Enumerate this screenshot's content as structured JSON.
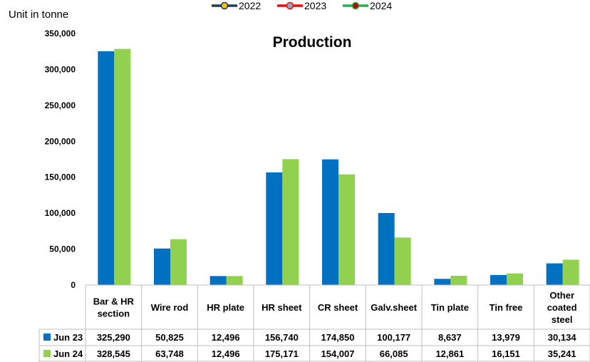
{
  "unit_label": "Unit in tonne",
  "top_legend": [
    {
      "label": "2022",
      "line_color": "#1F3864",
      "dot_color": "#F5C518"
    },
    {
      "label": "2023",
      "line_color": "#FF0000",
      "dot_color": "#8FA8C8"
    },
    {
      "label": "2024",
      "line_color": "#22B14C",
      "dot_color": "#C00000"
    }
  ],
  "colors": {
    "jun23": "#0070C0",
    "jun24": "#92D050",
    "grid": "#d9d9d9",
    "table_border": "#bfbfbf"
  },
  "chart_data": {
    "type": "bar",
    "title": "Production",
    "categories": [
      [
        "Bar & HR",
        "section"
      ],
      [
        "Wire rod"
      ],
      [
        "HR plate"
      ],
      [
        "HR sheet"
      ],
      [
        "CR sheet"
      ],
      [
        "Galv.sheet"
      ],
      [
        "Tin plate"
      ],
      [
        "Tin free"
      ],
      [
        "Other",
        "coated",
        "steel"
      ]
    ],
    "series": [
      {
        "name": "Jun 23",
        "values": [
          325290,
          50825,
          12496,
          156740,
          174850,
          100177,
          8637,
          13979,
          30134
        ],
        "labels": [
          "325,290",
          "50,825",
          "12,496",
          "156,740",
          "174,850",
          "100,177",
          "8,637",
          "13,979",
          "30,134"
        ]
      },
      {
        "name": "Jun 24",
        "values": [
          328545,
          63748,
          12496,
          175171,
          154007,
          66085,
          12861,
          16151,
          35241
        ],
        "labels": [
          "328,545",
          "63,748",
          "12,496",
          "175,171",
          "154,007",
          "66,085",
          "12,861",
          "16,151",
          "35,241"
        ]
      }
    ],
    "ylim": [
      0,
      350000
    ],
    "yticks": [
      0,
      50000,
      100000,
      150000,
      200000,
      250000,
      300000,
      350000
    ],
    "ytick_labels": [
      "0",
      "50,000",
      "100,000",
      "150,000",
      "200,000",
      "250,000",
      "300,000",
      "350,000"
    ],
    "grid": false,
    "data_table": true
  }
}
